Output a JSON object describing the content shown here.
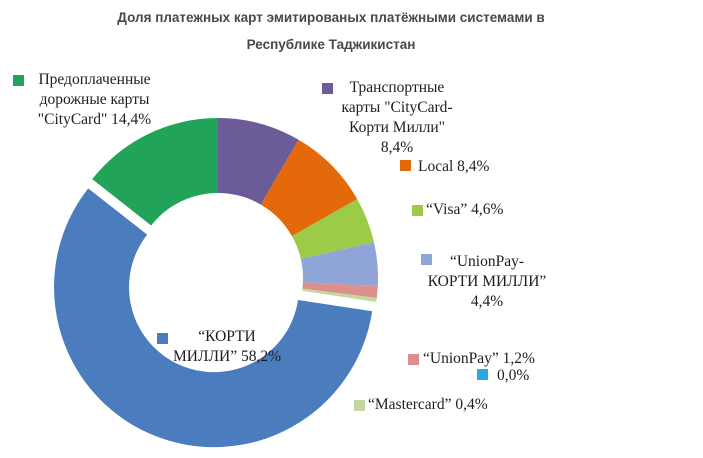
{
  "title": {
    "line1": "Доля платежных карт эмитированых платёжными системами в",
    "line2": "Республике Таджикистан"
  },
  "legend": {
    "prepaid": {
      "line1": "Предоплаченные",
      "line2": "дорожные карты",
      "line3": "\"CityCard\" 14,4%",
      "color": "#21A45A"
    },
    "transport": {
      "line1": "Транспортные",
      "line2": "карты \"CityCard-",
      "line3": "Корти Милли\"",
      "line4": "8,4%",
      "color": "#6B5B98"
    },
    "local": {
      "label": "Local 8,4%",
      "color": "#E3690B"
    },
    "visa": {
      "label": "“Visa” 4,6%",
      "color": "#9CCB48"
    },
    "unionpay_korti": {
      "line1": "“UnionPay-",
      "line2": "КОРТИ МИЛЛИ”",
      "line3": "4,4%",
      "color": "#8FA4D7"
    },
    "unionpay": {
      "label": "“UnionPay” 1,2%",
      "color": "#DD8F8D"
    },
    "zero": {
      "label": "0,0%",
      "color": "#29A9E1"
    },
    "mastercard": {
      "label": "“Mastercard” 0,4%",
      "color": "#C4D7A1"
    },
    "korti_milli": {
      "line1": "“КОРТИ",
      "line2": "МИЛЛИ” 58,2%",
      "color": "#4B7DBE"
    }
  },
  "chart_data": {
    "type": "pie",
    "subtype": "donut",
    "title": "Доля платежных карт эмитированых платёжными системами в Республике Таджикистан",
    "units": "percent",
    "start_angle_deg": 0,
    "direction": "clockwise",
    "hole_ratio": 0.53,
    "slices": [
      {
        "id": "transport-citycard",
        "label": "Транспортные карты \"CityCard-Корти Милли\"",
        "value": 8.4,
        "color": "#6B5B98",
        "exploded": false
      },
      {
        "id": "local",
        "label": "Local",
        "value": 8.4,
        "color": "#E3690B",
        "exploded": false
      },
      {
        "id": "visa",
        "label": "“Visa”",
        "value": 4.6,
        "color": "#9CCB48",
        "exploded": false
      },
      {
        "id": "unionpay-korti-milli",
        "label": "“UnionPay-КОРТИ МИЛЛИ”",
        "value": 4.4,
        "color": "#8FA4D7",
        "exploded": false
      },
      {
        "id": "unionpay",
        "label": "“UnionPay”",
        "value": 1.2,
        "color": "#DD8F8D",
        "exploded": false
      },
      {
        "id": "zero",
        "label": "",
        "value": 0.0,
        "color": "#29A9E1",
        "exploded": false
      },
      {
        "id": "mastercard",
        "label": "“Mastercard”",
        "value": 0.4,
        "color": "#C4D7A1",
        "exploded": false
      },
      {
        "id": "korti-milli",
        "label": "“КОРТИ МИЛЛИ”",
        "value": 58.2,
        "color": "#4B7DBE",
        "exploded": true
      },
      {
        "id": "prepaid-citycard",
        "label": "Предоплаченные дорожные карты \"CityCard\"",
        "value": 14.4,
        "color": "#21A45A",
        "exploded": false
      }
    ],
    "legend_position": "around-chart"
  }
}
